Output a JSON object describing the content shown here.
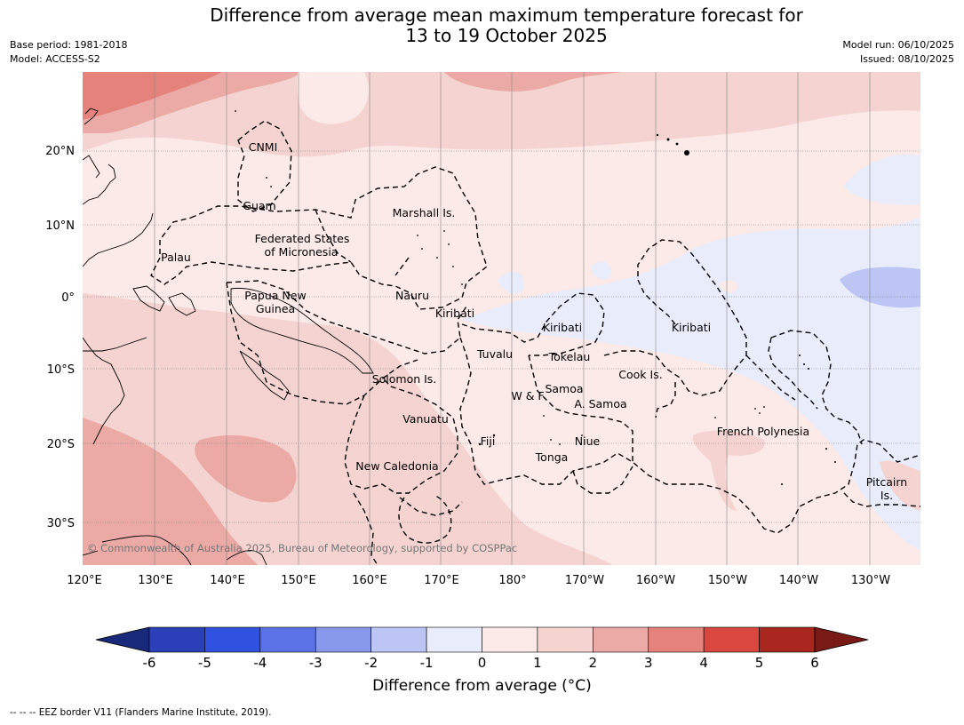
{
  "title": {
    "line1": "Difference from average mean maximum temperature forecast for",
    "line2": "13 to 19 October 2025"
  },
  "meta": {
    "base_period": "Base period: 1981-2018",
    "model": "Model: ACCESS-S2",
    "model_run": "Model run: 06/10/2025",
    "issued": "Issued: 08/10/2025"
  },
  "axes": {
    "lon_ticks": [
      "120°E",
      "130°E",
      "140°E",
      "150°E",
      "160°E",
      "170°E",
      "180°",
      "170°W",
      "160°W",
      "150°W",
      "140°W",
      "130°W"
    ],
    "lat_ticks": [
      "20°N",
      "10°N",
      "0°",
      "10°S",
      "20°S",
      "30°S"
    ]
  },
  "regions": [
    {
      "label": "CNMI"
    },
    {
      "label": "Guam"
    },
    {
      "label": "Marshall Is."
    },
    {
      "label": "Federated States"
    },
    {
      "label": "of Micronesia"
    },
    {
      "label": "Palau"
    },
    {
      "label": "Papua New"
    },
    {
      "label": "Guinea"
    },
    {
      "label": "Nauru"
    },
    {
      "label": "Kiribati"
    },
    {
      "label": "Kiribati"
    },
    {
      "label": "Kiribati"
    },
    {
      "label": "Tuvalu"
    },
    {
      "label": "Tokelau"
    },
    {
      "label": "Cook Is."
    },
    {
      "label": "Solomon Is."
    },
    {
      "label": "Samoa"
    },
    {
      "label": "W & F"
    },
    {
      "label": "A. Samoa"
    },
    {
      "label": "Vanuatu"
    },
    {
      "label": "Fiji"
    },
    {
      "label": "Niue"
    },
    {
      "label": "French Polynesia"
    },
    {
      "label": "Tonga"
    },
    {
      "label": "New Caledonia"
    },
    {
      "label": "Pitcairn"
    },
    {
      "label": "Is."
    }
  ],
  "copyright": "© Commonwealth of Australia 2025, Bureau of Meteorology, supported by COSPPac",
  "colorbar": {
    "title": "Difference from average (°C)",
    "ticks": [
      "-6",
      "-5",
      "-4",
      "-3",
      "-2",
      "-1",
      "0",
      "1",
      "2",
      "3",
      "4",
      "5",
      "6"
    ],
    "colors": [
      "#1a2a7a",
      "#2a3fb8",
      "#3152e0",
      "#5a72e6",
      "#8797ea",
      "#bcc5f3",
      "#e8ecfb",
      "#fbeae8",
      "#f5d3d0",
      "#ebaaa5",
      "#e4827b",
      "#d9473e",
      "#a9271f",
      "#7a1a16"
    ]
  },
  "footer": "-- -- -- EEZ border V11 (Flanders Marine Institute, 2019)."
}
